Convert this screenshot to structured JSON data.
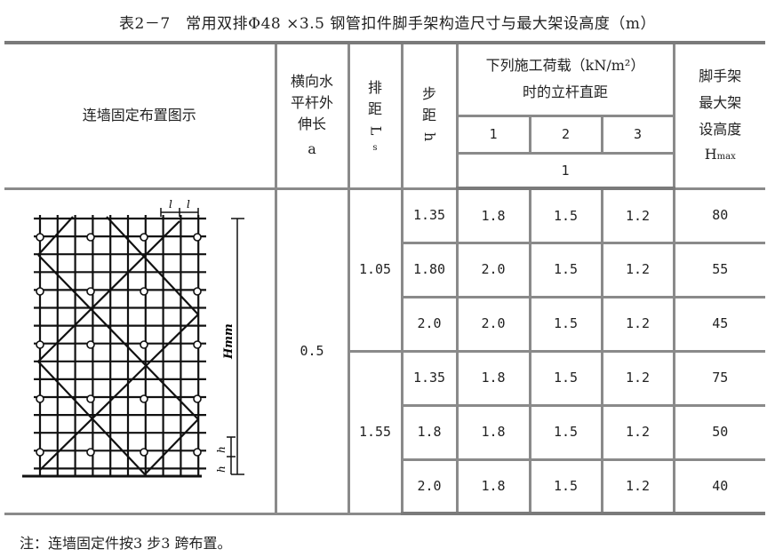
{
  "title": "表2－7　常用双排Φ48 ×3.5 钢管扣件脚手架构造尺寸与最大架设高度（m）",
  "header": {
    "diagram": "连墙固定布置图示",
    "a": [
      "横向水",
      "平杆外",
      "伸长",
      "a"
    ],
    "ls": [
      "排",
      "距",
      "L",
      "s"
    ],
    "h": [
      "步",
      "距",
      "h"
    ],
    "load": [
      "下列施工荷载（kN/m²）",
      "时的立杆直距"
    ],
    "load_cols": [
      "1",
      "2",
      "3"
    ],
    "load_unit": "1",
    "hmax": [
      "脚手架",
      "最大架",
      "设高度",
      "H",
      "max"
    ]
  },
  "diagram": {
    "dim_l": "l",
    "dim_h": "h",
    "dim_H": "Hmm"
  },
  "a_value": "0.5",
  "ls_values": [
    "1.05",
    "1.55"
  ],
  "rows": [
    {
      "h": "1.35",
      "v1": "1.8",
      "v2": "1.5",
      "v3": "1.2",
      "hmax": "80"
    },
    {
      "h": "1.80",
      "v1": "2.0",
      "v2": "1.5",
      "v3": "1.2",
      "hmax": "55"
    },
    {
      "h": "2.0",
      "v1": "2.0",
      "v2": "1.5",
      "v3": "1.2",
      "hmax": "45"
    },
    {
      "h": "1.35",
      "v1": "1.8",
      "v2": "1.5",
      "v3": "1.2",
      "hmax": "75"
    },
    {
      "h": "1.8",
      "v1": "1.8",
      "v2": "1.5",
      "v3": "1.2",
      "hmax": "50"
    },
    {
      "h": "2.0",
      "v1": "1.8",
      "v2": "1.5",
      "v3": "1.2",
      "hmax": "40"
    }
  ],
  "note": "注：连墙固定件按3 步3 跨布置。"
}
